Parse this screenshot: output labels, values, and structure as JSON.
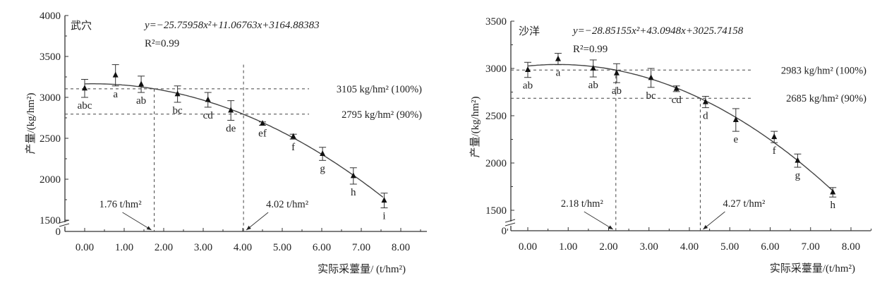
{
  "chart_data": [
    {
      "type": "scatter",
      "site": "武穴",
      "equation": "y=−25.75958x²+11.06763x+3164.88383",
      "coefficients": [
        -25.75958,
        11.06763,
        3164.88383
      ],
      "r2": "R²=0.99",
      "xlabel": "实际采薹量/ (t/hm²)",
      "ylabel": "产量/(kg/hm²)",
      "xlim": [
        -0.5,
        8.5
      ],
      "ylim": [
        1400,
        4000
      ],
      "y_break": true,
      "xticks": [
        "0.00",
        "1.00",
        "2.00",
        "3.00",
        "4.00",
        "5.00",
        "6.00",
        "7.00",
        "8.00"
      ],
      "yticks": [
        "1500",
        "2000",
        "2500",
        "3000",
        "3500",
        "4000"
      ],
      "y_zero_label": "0",
      "points": [
        {
          "x": 0.0,
          "y": 3110,
          "err": 110,
          "label": "abc"
        },
        {
          "x": 0.78,
          "y": 3270,
          "err": 130,
          "label": "a"
        },
        {
          "x": 1.43,
          "y": 3160,
          "err": 100,
          "label": "ab"
        },
        {
          "x": 2.35,
          "y": 3040,
          "err": 100,
          "label": "bc"
        },
        {
          "x": 3.12,
          "y": 2970,
          "err": 90,
          "label": "cd"
        },
        {
          "x": 3.7,
          "y": 2840,
          "err": 120,
          "label": "de"
        },
        {
          "x": 4.5,
          "y": 2680,
          "err": 20,
          "label": "ef"
        },
        {
          "x": 5.28,
          "y": 2520,
          "err": 30,
          "label": "f"
        },
        {
          "x": 6.02,
          "y": 2310,
          "err": 80,
          "label": "g"
        },
        {
          "x": 6.8,
          "y": 2040,
          "err": 100,
          "label": "h"
        },
        {
          "x": 7.58,
          "y": 1740,
          "err": 90,
          "label": "i"
        }
      ],
      "hlines": [
        {
          "y": 3105,
          "label": "3105 kg/hm² (100%)"
        },
        {
          "y": 2795,
          "label": "2795 kg/hm² (90%)"
        }
      ],
      "vlines": [
        {
          "x": 1.76,
          "top": 3105,
          "label": "1.76 t/hm²"
        },
        {
          "x": 4.02,
          "top": 3400,
          "label": "4.02 t/hm²"
        }
      ]
    },
    {
      "type": "scatter",
      "site": "沙洋",
      "equation": "y=−28.85155x²+43.0948x+3025.74158",
      "coefficients": [
        -28.85155,
        43.0948,
        3025.74158
      ],
      "r2": "R²=0.99",
      "xlabel": "实际采薹量/(t/hm²)",
      "ylabel": "产量/(kg/hm²)",
      "xlim": [
        -0.5,
        8.5
      ],
      "ylim": [
        1400,
        3500
      ],
      "y_break": true,
      "xticks": [
        "0.00",
        "1.00",
        "2.00",
        "3.00",
        "4.00",
        "5.00",
        "6.00",
        "7.00",
        "8.00"
      ],
      "yticks": [
        "1500",
        "2000",
        "2500",
        "3000",
        "3500"
      ],
      "y_zero_label": "0",
      "points": [
        {
          "x": 0.0,
          "y": 2985,
          "err": 80,
          "label": "ab"
        },
        {
          "x": 0.75,
          "y": 3100,
          "err": 60,
          "label": "a"
        },
        {
          "x": 1.62,
          "y": 3000,
          "err": 90,
          "label": "ab"
        },
        {
          "x": 2.2,
          "y": 2950,
          "err": 100,
          "label": "ab"
        },
        {
          "x": 3.05,
          "y": 2900,
          "err": 100,
          "label": "bc"
        },
        {
          "x": 3.68,
          "y": 2785,
          "err": 30,
          "label": "cd"
        },
        {
          "x": 4.4,
          "y": 2645,
          "err": 60,
          "label": "d"
        },
        {
          "x": 5.15,
          "y": 2455,
          "err": 120,
          "label": "e"
        },
        {
          "x": 6.1,
          "y": 2275,
          "err": 60,
          "label": "f"
        },
        {
          "x": 6.68,
          "y": 2025,
          "err": 70,
          "label": "g"
        },
        {
          "x": 7.55,
          "y": 1690,
          "err": 50,
          "label": "h"
        }
      ],
      "hlines": [
        {
          "y": 2983,
          "label": "2983 kg/hm² (100%)"
        },
        {
          "y": 2685,
          "label": "2685 kg/hm² (90%)"
        }
      ],
      "vlines": [
        {
          "x": 2.18,
          "top": 2983,
          "label": "2.18 t/hm²"
        },
        {
          "x": 4.27,
          "top": 2685,
          "label": "4.27 t/hm²"
        }
      ]
    }
  ]
}
